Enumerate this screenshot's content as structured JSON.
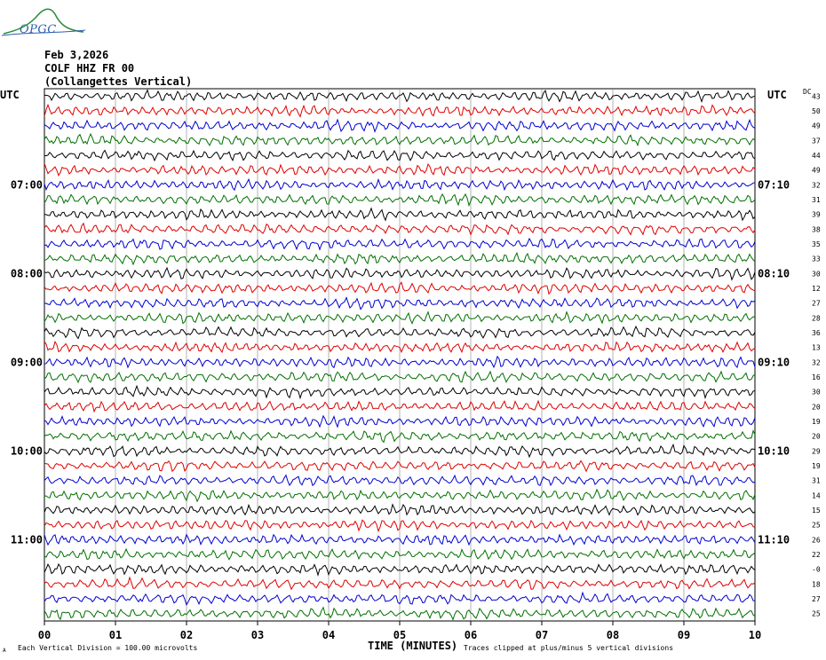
{
  "logo": {
    "text": "OPGC"
  },
  "header": {
    "date": "Feb 3,2026",
    "station": "COLF HHZ FR 00",
    "location": "(Collangettes Vertical)"
  },
  "axis": {
    "left_unit": "UTC",
    "right_unit": "UTC",
    "dc_label": "DC",
    "x_title": "TIME (MINUTES)",
    "x_ticks": [
      "00",
      "01",
      "02",
      "03",
      "04",
      "05",
      "06",
      "07",
      "08",
      "09",
      "10"
    ]
  },
  "footer": {
    "scale_note": "Each Vertical Division =  100.00 microvolts",
    "clip_note": "Traces clipped at plus/minus 5 vertical divisions",
    "small_mark": "A"
  },
  "colors": {
    "trace_cycle": [
      "#000000",
      "#e00000",
      "#0000d0",
      "#007000"
    ],
    "grid": "#808080"
  },
  "chart_data": {
    "type": "line",
    "title": "COLF HHZ FR 00 (Collangettes Vertical)",
    "xlabel": "TIME (MINUTES)",
    "xlim": [
      0,
      10
    ],
    "traces_per_hour": 6,
    "rows": 36,
    "left_hour_labels": [
      {
        "row": 6,
        "text": "07:00"
      },
      {
        "row": 12,
        "text": "08:00"
      },
      {
        "row": 18,
        "text": "09:00"
      },
      {
        "row": 24,
        "text": "10:00"
      },
      {
        "row": 30,
        "text": "11:00"
      }
    ],
    "right_hour_labels": [
      {
        "row": 6,
        "text": "07:10"
      },
      {
        "row": 12,
        "text": "08:10"
      },
      {
        "row": 18,
        "text": "09:10"
      },
      {
        "row": 24,
        "text": "10:10"
      },
      {
        "row": 30,
        "text": "11:10"
      }
    ],
    "dc_offsets": [
      "43",
      "50",
      "49",
      "37",
      "44",
      "49",
      "32",
      "31",
      "39",
      "38",
      "35",
      "33",
      "30",
      "12",
      "27",
      "28",
      "36",
      "13",
      "32",
      "16",
      "30",
      "20",
      "19",
      "20",
      "29",
      "19",
      "31",
      "14",
      "15",
      "25",
      "26",
      "22",
      "-0",
      "18",
      "27",
      "25"
    ]
  }
}
